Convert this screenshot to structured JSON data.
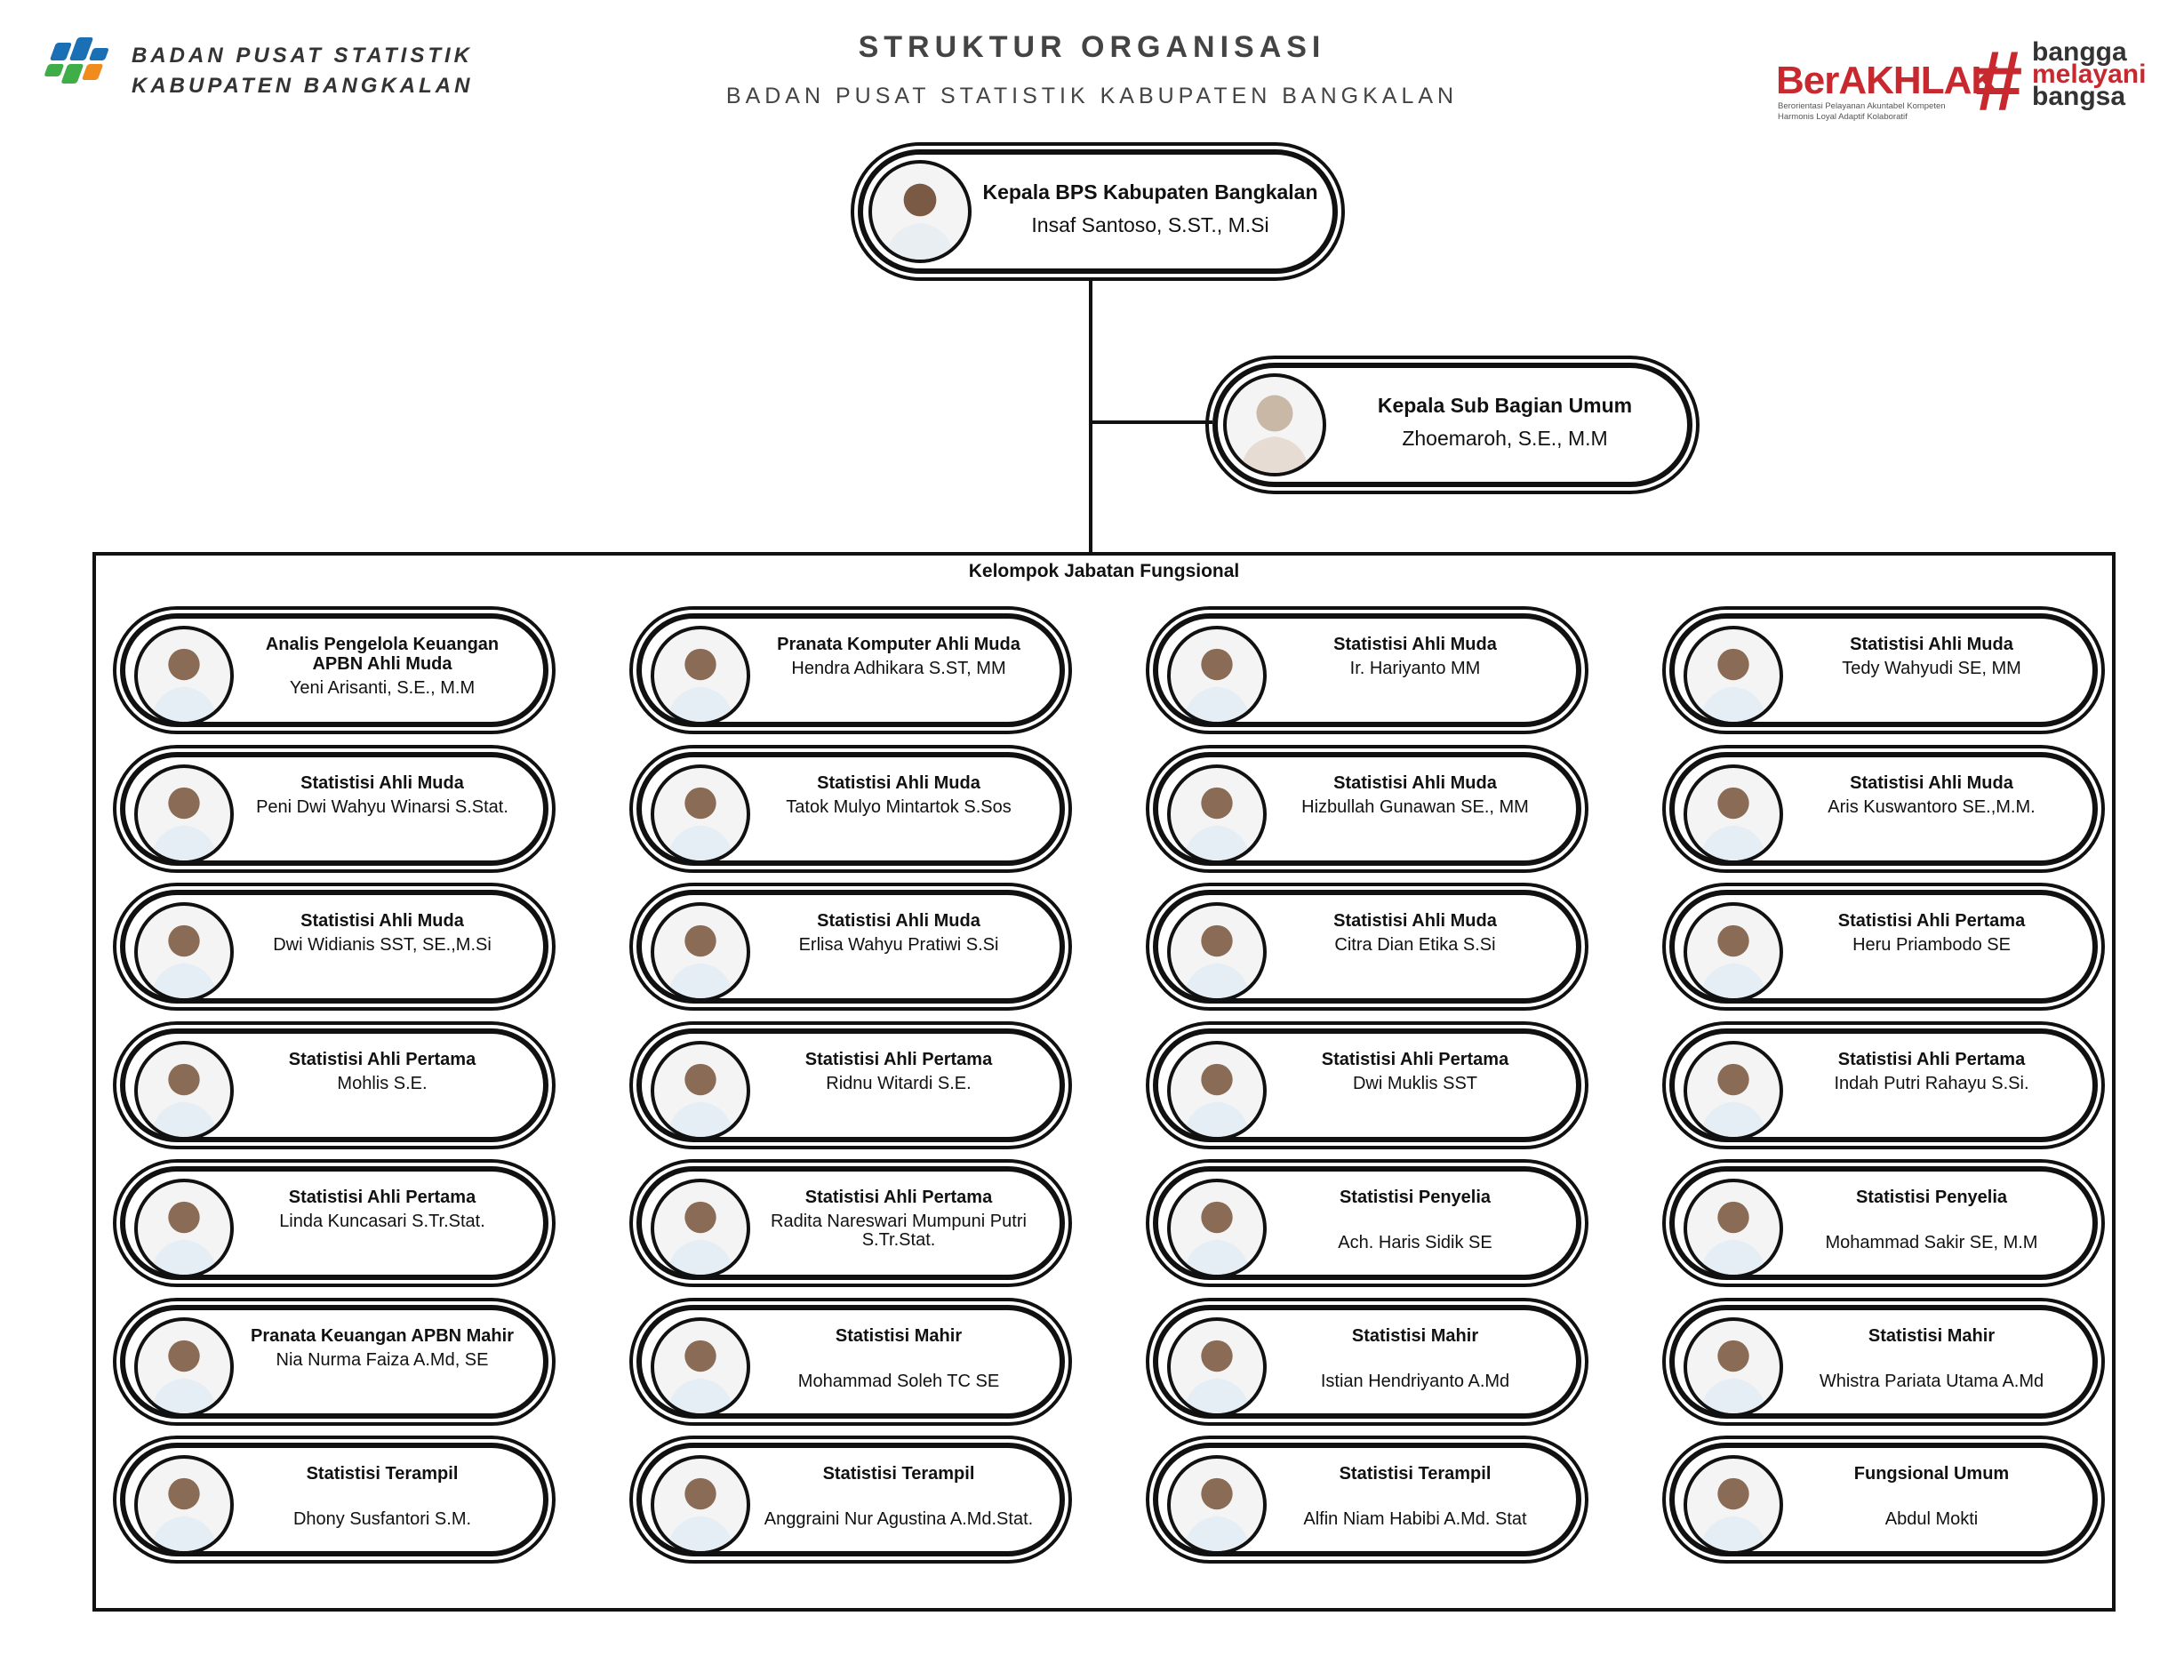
{
  "header": {
    "org_line1": "BADAN PUSAT STATISTIK",
    "org_line2": "KABUPATEN BANGKALAN",
    "title": "STRUKTUR ORGANISASI",
    "subtitle": "BADAN PUSAT STATISTIK KABUPATEN BANGKALAN",
    "logo_icon": "bps-logo",
    "berakhlak": {
      "word": "BerAKHLAK",
      "tagline1": "Berorientasi Pelayanan Akuntabel Kompeten",
      "tagline2": "Harmonis Loyal Adaptif Kolaboratif",
      "hash": "#",
      "bangga": "bangga",
      "melayani": "melayani",
      "bangsa": "bangsa"
    }
  },
  "colors": {
    "line": "#111111",
    "brand_red": "#c7292f",
    "bps_blue": "#1a6fb5",
    "bps_green": "#3fae49",
    "bps_orange": "#f08c1e"
  },
  "head": {
    "title": "Kepala BPS Kabupaten Bangkalan",
    "name": "Insaf Santoso, S.ST., M.Si",
    "avatar": "person-photo"
  },
  "subbag": {
    "title": "Kepala Sub Bagian Umum",
    "name": "Zhoemaroh, S.E., M.M",
    "avatar": "person-photo"
  },
  "group_label": "Kelompok Jabatan Fungsional",
  "rows": [
    [
      {
        "title": "Analis Pengelola Keuangan APBN Ahli Muda",
        "name": "Yeni Arisanti, S.E., M.M"
      },
      {
        "title": "Pranata Komputer Ahli Muda",
        "name": "Hendra Adhikara S.ST, MM"
      },
      {
        "title": "Statistisi Ahli Muda",
        "name": "Ir. Hariyanto MM"
      },
      {
        "title": "Statistisi Ahli Muda",
        "name": "Tedy Wahyudi SE, MM"
      }
    ],
    [
      {
        "title": "Statistisi Ahli Muda",
        "name": "Peni Dwi Wahyu Winarsi S.Stat."
      },
      {
        "title": "Statistisi Ahli Muda",
        "name": "Tatok Mulyo Mintartok S.Sos"
      },
      {
        "title": "Statistisi Ahli Muda",
        "name": "Hizbullah Gunawan SE., MM"
      },
      {
        "title": "Statistisi Ahli Muda",
        "name": "Aris Kuswantoro SE.,M.M."
      }
    ],
    [
      {
        "title": "Statistisi Ahli Muda",
        "name": "Dwi Widianis SST, SE.,M.Si"
      },
      {
        "title": "Statistisi Ahli Muda",
        "name": "Erlisa Wahyu Pratiwi S.Si"
      },
      {
        "title": "Statistisi Ahli Muda",
        "name": "Citra Dian Etika S.Si"
      },
      {
        "title": "Statistisi Ahli Pertama",
        "name": "Heru Priambodo SE"
      }
    ],
    [
      {
        "title": "Statistisi Ahli Pertama",
        "name": "Mohlis S.E."
      },
      {
        "title": "Statistisi Ahli Pertama",
        "name": "Ridnu Witardi S.E."
      },
      {
        "title": "Statistisi Ahli Pertama",
        "name": "Dwi Muklis SST"
      },
      {
        "title": "Statistisi Ahli Pertama",
        "name": "Indah Putri Rahayu S.Si."
      }
    ],
    [
      {
        "title": "Statistisi Ahli Pertama",
        "name": "Linda Kuncasari S.Tr.Stat."
      },
      {
        "title": "Statistisi Ahli Pertama",
        "name": "Radita Nareswari Mumpuni Putri S.Tr.Stat."
      },
      {
        "title": "Statistisi Penyelia",
        "name": "Ach. Haris Sidik SE"
      },
      {
        "title": "Statistisi Penyelia",
        "name": "Mohammad Sakir SE, M.M"
      }
    ],
    [
      {
        "title": "Pranata Keuangan APBN Mahir",
        "name": "Nia Nurma Faiza A.Md, SE"
      },
      {
        "title": "Statistisi Mahir",
        "name": "Mohammad Soleh TC SE"
      },
      {
        "title": "Statistisi Mahir",
        "name": "Istian Hendriyanto A.Md"
      },
      {
        "title": "Statistisi Mahir",
        "name": "Whistra Pariata Utama A.Md"
      }
    ],
    [
      {
        "title": "Statistisi Terampil",
        "name": "Dhony Susfantori S.M."
      },
      {
        "title": "Statistisi Terampil",
        "name": "Anggraini Nur Agustina A.Md.Stat."
      },
      {
        "title": "Statistisi Terampil",
        "name": "Alfin Niam Habibi A.Md. Stat"
      },
      {
        "title": "Fungsional Umum",
        "name": "Abdul Mokti"
      }
    ]
  ]
}
